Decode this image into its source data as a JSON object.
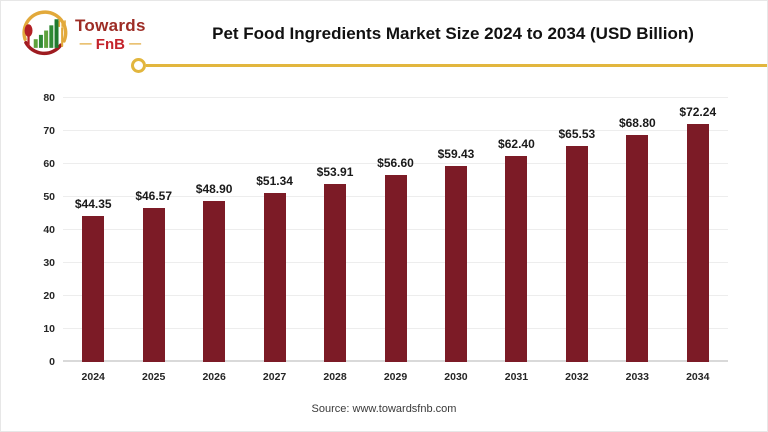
{
  "logo": {
    "brand_top": "Towards",
    "brand_bottom": "FnB",
    "dash": "—"
  },
  "header": {
    "title": "Pet Food Ingredients Market Size 2024 to 2034 (USD Billion)"
  },
  "chart_data": {
    "type": "bar",
    "title": "Pet Food Ingredients Market Size 2024 to 2034 (USD Billion)",
    "categories": [
      "2024",
      "2025",
      "2026",
      "2027",
      "2028",
      "2029",
      "2030",
      "2031",
      "2032",
      "2033",
      "2034"
    ],
    "values": [
      44.35,
      46.57,
      48.9,
      51.34,
      53.91,
      56.6,
      59.43,
      62.4,
      65.53,
      68.8,
      72.24
    ],
    "value_labels": [
      "$44.35",
      "$46.57",
      "$48.90",
      "$51.34",
      "$53.91",
      "$56.60",
      "$59.43",
      "$62.40",
      "$65.53",
      "$68.80",
      "$72.24"
    ],
    "xlabel": "",
    "ylabel": "",
    "ylim": [
      0,
      80
    ],
    "yticks": [
      0,
      10,
      20,
      30,
      40,
      50,
      60,
      70,
      80
    ],
    "grid": true,
    "legend_position": "none",
    "bar_color": "#7c1b26",
    "gridline_color": "#ededed",
    "baseline_color": "#d9d9d9",
    "accent_gold": "#e2b63e"
  },
  "footer": {
    "source": "Source: www.towardsfnb.com"
  }
}
